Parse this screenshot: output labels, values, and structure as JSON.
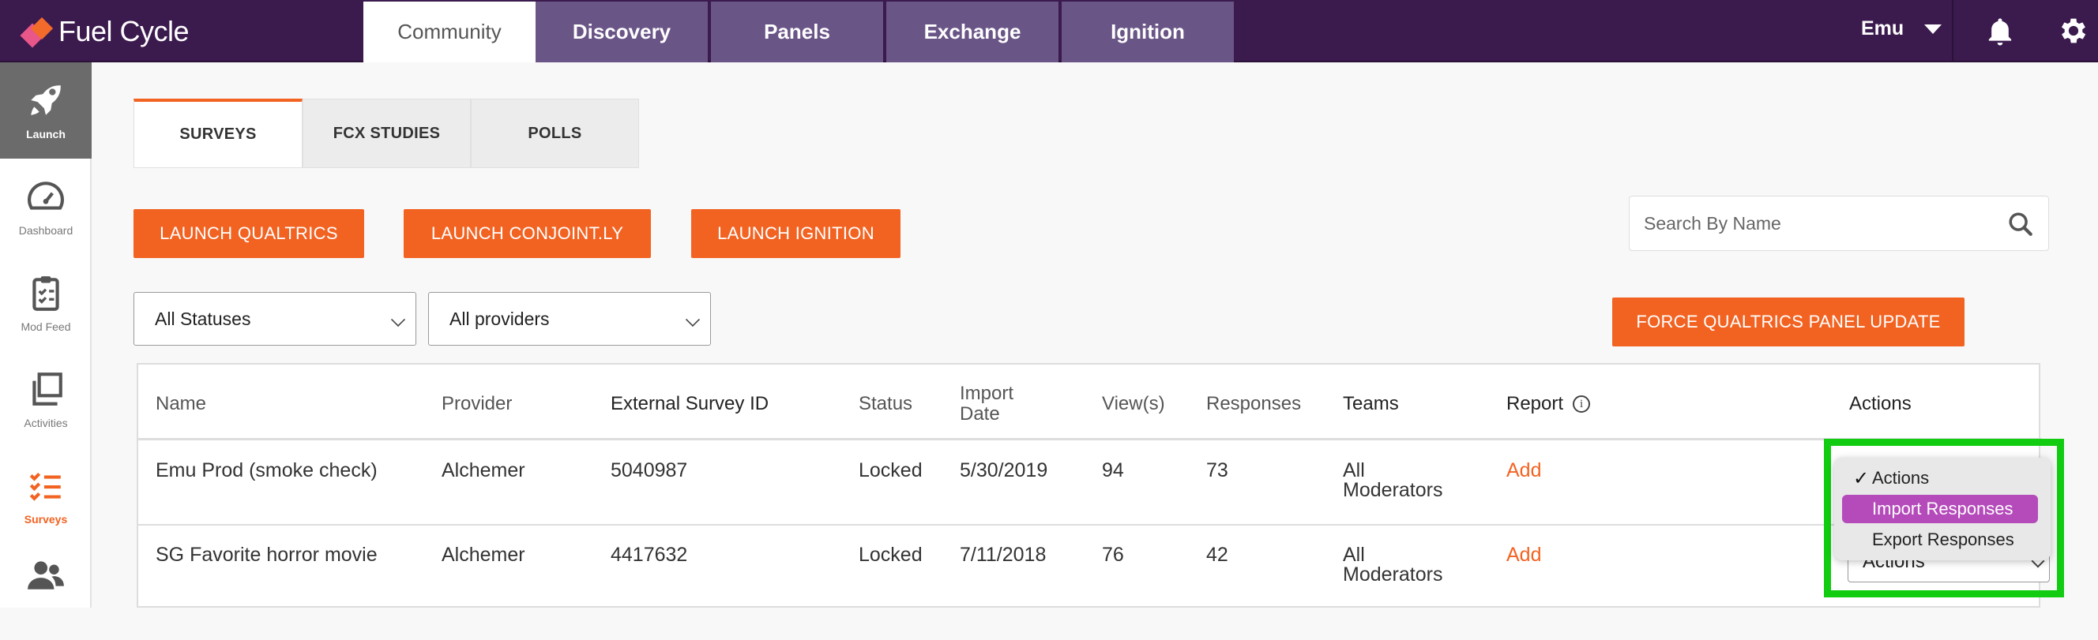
{
  "app": {
    "brand": "Fuel Cycle",
    "brand_colors": {
      "primary": "#3b1a4e",
      "accent": "#f26322",
      "nav_tab": "#6a5587"
    }
  },
  "topnav": {
    "tabs": [
      "Community",
      "Discovery",
      "Panels",
      "Exchange",
      "Ignition"
    ],
    "active_tab": "Community",
    "user": "Emu"
  },
  "sidebar": {
    "items": [
      {
        "label": "Launch",
        "icon": "rocket-icon"
      },
      {
        "label": "Dashboard",
        "icon": "gauge-icon"
      },
      {
        "label": "Mod Feed",
        "icon": "clipboard-icon"
      },
      {
        "label": "Activities",
        "icon": "stacked-pages-icon"
      },
      {
        "label": "Surveys",
        "icon": "checklist-icon"
      },
      {
        "label": "",
        "icon": "users-icon"
      }
    ]
  },
  "content_tabs": {
    "items": [
      "SURVEYS",
      "FCX STUDIES",
      "POLLS"
    ],
    "active": "SURVEYS"
  },
  "buttons": {
    "launch_qualtrics": "LAUNCH QUALTRICS",
    "launch_conjointly": "LAUNCH CONJOINT.LY",
    "launch_ignition": "LAUNCH IGNITION",
    "force_update": "FORCE QUALTRICS PANEL UPDATE"
  },
  "search": {
    "placeholder": "Search By Name"
  },
  "filters": {
    "status": "All Statuses",
    "provider": "All providers"
  },
  "table": {
    "headers": {
      "name": "Name",
      "provider": "Provider",
      "external_id": "External Survey ID",
      "status": "Status",
      "import_date_1": "Import",
      "import_date_2": "Date",
      "views": "View(s)",
      "responses": "Responses",
      "teams": "Teams",
      "report": "Report",
      "actions": "Actions"
    },
    "rows": [
      {
        "name": "Emu Prod (smoke check)",
        "provider": "Alchemer",
        "external_id": "5040987",
        "status": "Locked",
        "import_date": "5/30/2019",
        "views": "94",
        "responses": "73",
        "teams_1": "All",
        "teams_2": "Moderators",
        "report": "Add"
      },
      {
        "name": "SG Favorite horror movie",
        "provider": "Alchemer",
        "external_id": "4417632",
        "status": "Locked",
        "import_date": "7/11/2018",
        "views": "76",
        "responses": "42",
        "teams_1": "All",
        "teams_2": "Moderators",
        "report": "Add",
        "actions": "Actions"
      }
    ]
  },
  "actions_menu": {
    "options": [
      "Actions",
      "Import Responses",
      "Export Responses"
    ],
    "checked": "Actions",
    "highlighted": "Import Responses"
  }
}
